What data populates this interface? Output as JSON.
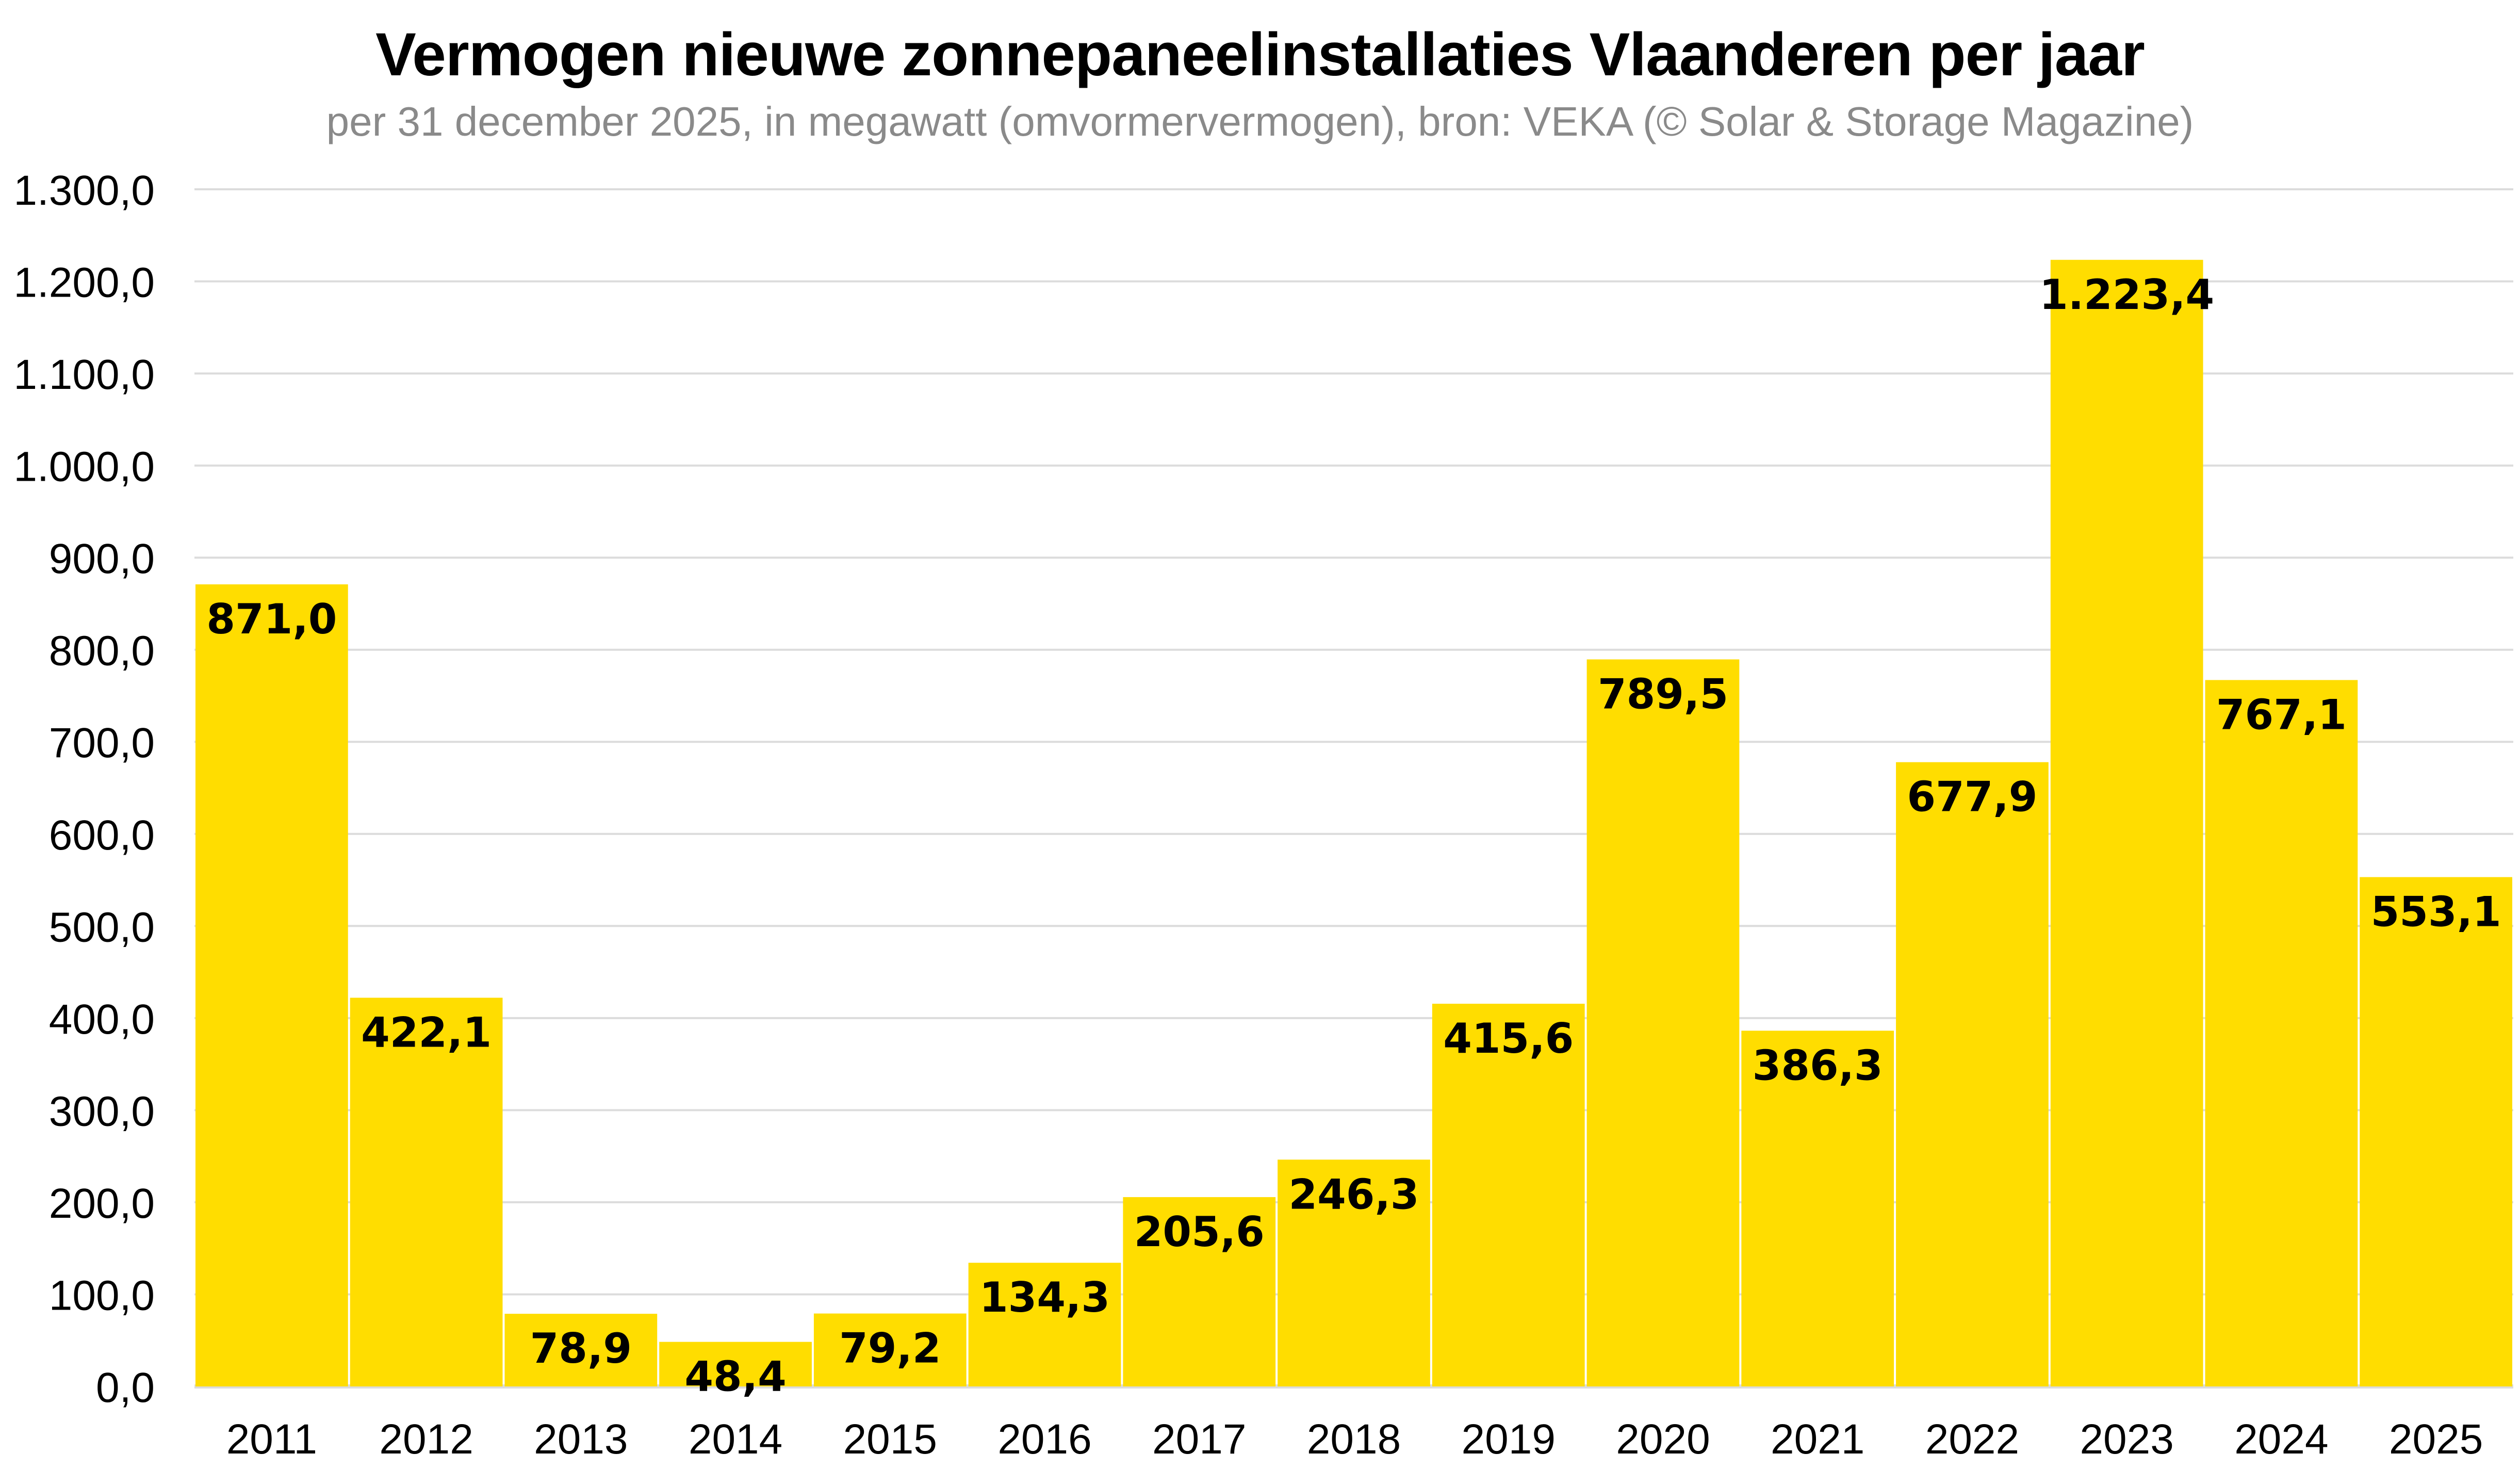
{
  "chart_data": {
    "type": "bar",
    "title": "Vermogen nieuwe zonnepaneelinstallaties Vlaanderen per jaar",
    "subtitle": "per 31 december 2025, in megawatt (omvormervermogen), bron: VEKA (© Solar & Storage Magazine)",
    "xlabel": "",
    "ylabel": "",
    "categories": [
      "2011",
      "2012",
      "2013",
      "2014",
      "2015",
      "2016",
      "2017",
      "2018",
      "2019",
      "2020",
      "2021",
      "2022",
      "2023",
      "2024",
      "2025"
    ],
    "values": [
      871.0,
      422.1,
      78.9,
      48.4,
      79.2,
      134.3,
      205.6,
      246.3,
      415.6,
      789.5,
      386.3,
      677.9,
      1223.4,
      767.1,
      553.1
    ],
    "data_labels": [
      "871,0",
      "422,1",
      "78,9",
      "48,4",
      "79,2",
      "134,3",
      "205,6",
      "246,3",
      "415,6",
      "789,5",
      "386,3",
      "677,9",
      "1.223,4",
      "767,1",
      "553,1"
    ],
    "ylim": [
      0,
      1300
    ],
    "yticks": [
      0,
      100,
      200,
      300,
      400,
      500,
      600,
      700,
      800,
      900,
      1000,
      1100,
      1200,
      1300
    ],
    "ytick_labels": [
      "0,0",
      "100,0",
      "200,0",
      "300,0",
      "400,0",
      "500,0",
      "600,0",
      "700,0",
      "800,0",
      "900,0",
      "1.000,0",
      "1.100,0",
      "1.200,0",
      "1.300,0"
    ],
    "grid": true,
    "legend": "none",
    "colors": {
      "bar": "#FFDD00",
      "grid": "#dcdcdc",
      "text": "#000000",
      "subtitle": "#8a8a8a"
    }
  }
}
